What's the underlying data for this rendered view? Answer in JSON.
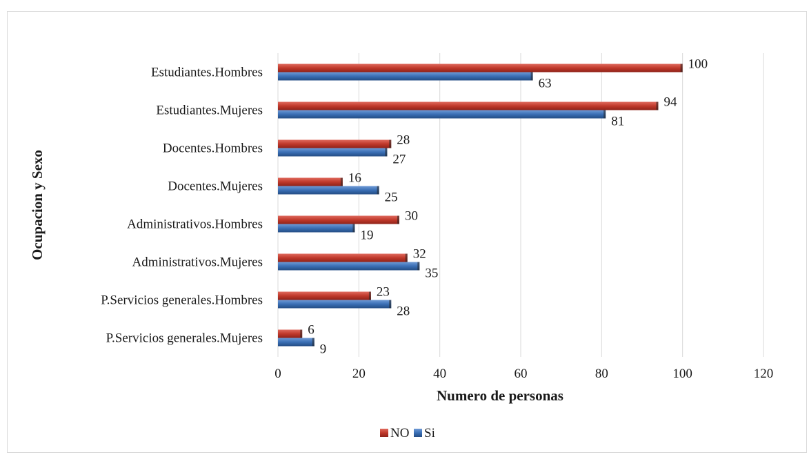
{
  "chart_data": {
    "type": "bar",
    "orientation": "horizontal",
    "title": "",
    "xlabel": "Numero de personas",
    "ylabel": "Ocupacion y Sexo",
    "xlim": [
      0,
      120
    ],
    "x_ticks": [
      0,
      20,
      40,
      60,
      80,
      100,
      120
    ],
    "grid": "vertical",
    "legend_position": "bottom",
    "categories": [
      "Estudiantes.Hombres",
      "Estudiantes.Mujeres",
      "Docentes.Hombres",
      "Docentes.Mujeres",
      "Administrativos.Hombres",
      "Administrativos.Mujeres",
      "P.Servicios generales.Hombres",
      "P.Servicios generales.Mujeres"
    ],
    "series": [
      {
        "name": "NO",
        "color": "#c0392b",
        "values": [
          100,
          94,
          28,
          16,
          30,
          32,
          23,
          6
        ]
      },
      {
        "name": "Si",
        "color": "#3a6fb5",
        "values": [
          63,
          81,
          27,
          25,
          19,
          35,
          28,
          9
        ]
      }
    ]
  }
}
